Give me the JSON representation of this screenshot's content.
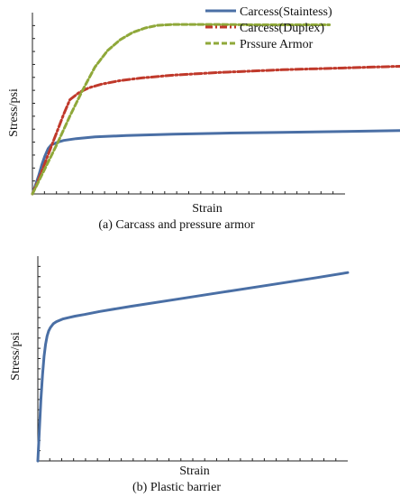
{
  "chart_data": [
    {
      "type": "line",
      "caption": "(a) Carcass and pressure armor",
      "xlabel": "Strain",
      "ylabel": "Stress/psi",
      "xlim": [
        0,
        100
      ],
      "ylim": [
        0,
        100
      ],
      "legend_position": "top-right",
      "grid": false,
      "series": [
        {
          "name": "Carcess(Staintess)",
          "color": "#4a6fa5",
          "dash": "solid",
          "x": [
            0,
            1,
            2,
            3,
            4,
            5,
            6,
            8,
            10,
            14,
            20,
            30,
            45,
            60,
            80,
            100,
            119
          ],
          "y": [
            0,
            5,
            10,
            16,
            21,
            25,
            27,
            28.5,
            29.5,
            30.5,
            31.5,
            32.2,
            33,
            33.5,
            34,
            34.5,
            35
          ]
        },
        {
          "name": "Carcess(Duplex)",
          "color": "#c0392b",
          "dash": "dashdot",
          "x": [
            0,
            2,
            4,
            6,
            8,
            10,
            12,
            15,
            18,
            22,
            28,
            35,
            45,
            60,
            80,
            100,
            119
          ],
          "y": [
            0,
            8,
            17,
            26,
            35,
            44,
            52,
            56,
            58.5,
            60.5,
            62.5,
            64,
            65.5,
            67,
            68.5,
            69.5,
            70.5
          ]
        },
        {
          "name": "Prssure Armor",
          "color": "#8fa83a",
          "dash": "dashed",
          "x": [
            0,
            4,
            8,
            12,
            16,
            20,
            24,
            28,
            32,
            36,
            40,
            45,
            52,
            60,
            70,
            80,
            90,
            95
          ],
          "y": [
            0,
            14,
            28,
            43,
            57,
            70,
            79,
            85,
            89,
            91.5,
            93,
            93.5,
            93.5,
            93.5,
            93.3,
            93.3,
            93.3,
            93.3
          ]
        }
      ]
    },
    {
      "type": "line",
      "caption": "(b) Plastic barrier",
      "xlabel": "Strain",
      "ylabel": "Stress/psi",
      "xlim": [
        0,
        100
      ],
      "ylim": [
        0,
        100
      ],
      "grid": false,
      "series": [
        {
          "color": "#4a6fa5",
          "dash": "solid",
          "x": [
            0,
            0.5,
            1,
            1.5,
            2,
            2.5,
            3,
            3.5,
            4,
            5,
            6,
            8,
            10,
            12,
            15,
            20,
            30,
            45,
            60,
            75,
            90,
            100
          ],
          "y": [
            0,
            15,
            30,
            42,
            51,
            57,
            61,
            63.5,
            65,
            67,
            68,
            69.3,
            70,
            70.7,
            71.5,
            73,
            75.5,
            79,
            82.5,
            86,
            89.5,
            92
          ]
        }
      ]
    }
  ]
}
